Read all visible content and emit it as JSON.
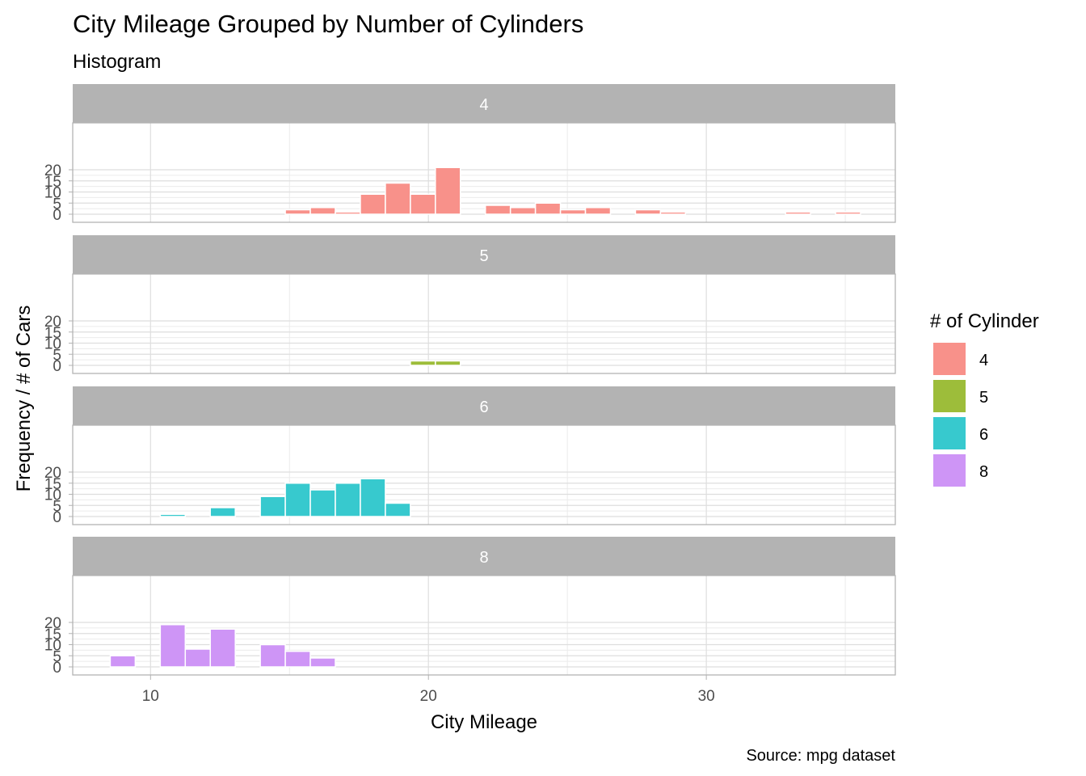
{
  "chart_data": {
    "type": "bar",
    "title": "City Mileage Grouped by Number of Cylinders",
    "subtitle": "Histogram",
    "xlabel": "City Mileage",
    "ylabel": "Frequency / # of Cars",
    "caption": "Source: mpg dataset",
    "xlim": [
      7.2,
      36.8
    ],
    "ylim": [
      0,
      21
    ],
    "x_ticks": [
      10,
      20,
      30
    ],
    "x_tick_labels": [
      "10",
      "20",
      "30"
    ],
    "y_ticks": [
      0,
      5,
      10,
      15,
      20
    ],
    "y_tick_labels": [
      "0",
      "5",
      "10",
      "15",
      "20"
    ],
    "grid": true,
    "legend": {
      "title": "# of Cylinder",
      "position": "right",
      "items": [
        {
          "label": "4",
          "color": "#F8918A"
        },
        {
          "label": "5",
          "color": "#9DBD3A"
        },
        {
          "label": "6",
          "color": "#37C9CE"
        },
        {
          "label": "8",
          "color": "#CE95F6"
        }
      ]
    },
    "bin_width": 0.9,
    "panels": [
      {
        "strip": "4",
        "color": "#F8918A",
        "bins": [
          [
            15.3,
            2
          ],
          [
            16.2,
            3
          ],
          [
            17.1,
            1
          ],
          [
            18.0,
            9
          ],
          [
            18.9,
            14
          ],
          [
            19.8,
            9
          ],
          [
            20.7,
            21
          ],
          [
            22.5,
            4
          ],
          [
            23.4,
            3
          ],
          [
            24.3,
            5
          ],
          [
            25.2,
            2
          ],
          [
            26.1,
            3
          ],
          [
            27.9,
            2
          ],
          [
            28.8,
            1
          ],
          [
            33.3,
            1
          ],
          [
            35.1,
            1
          ]
        ]
      },
      {
        "strip": "5",
        "color": "#9DBD3A",
        "bins": [
          [
            19.8,
            2
          ],
          [
            20.7,
            2
          ]
        ]
      },
      {
        "strip": "6",
        "color": "#37C9CE",
        "bins": [
          [
            10.8,
            1
          ],
          [
            12.6,
            4
          ],
          [
            14.4,
            9
          ],
          [
            15.3,
            15
          ],
          [
            16.2,
            12
          ],
          [
            17.1,
            15
          ],
          [
            18.0,
            17
          ],
          [
            18.9,
            6
          ]
        ]
      },
      {
        "strip": "8",
        "color": "#CE95F6",
        "bins": [
          [
            9.0,
            5
          ],
          [
            10.8,
            19
          ],
          [
            11.7,
            8
          ],
          [
            12.6,
            17
          ],
          [
            14.4,
            10
          ],
          [
            15.3,
            7
          ],
          [
            16.2,
            4
          ]
        ]
      }
    ]
  }
}
